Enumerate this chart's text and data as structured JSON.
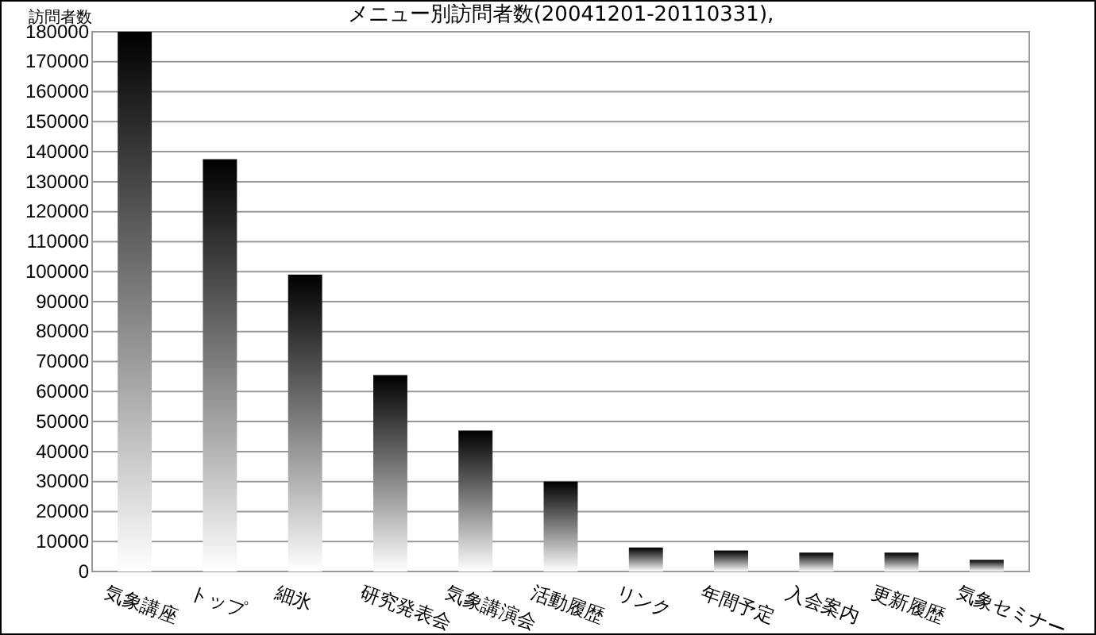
{
  "chart_data": {
    "type": "bar",
    "title": "メニュー別訪問者数(20041201-20110331),",
    "ylabel": "訪問者数",
    "categories": [
      "気象講座",
      "トップ",
      "細氷",
      "研究発表会",
      "気象講演会",
      "活動履歴",
      "リンク",
      "年間予定",
      "入会案内",
      "更新履歴",
      "気象セミナー"
    ],
    "values": [
      180000,
      137500,
      99000,
      65500,
      47000,
      30000,
      8000,
      7000,
      6300,
      6300,
      3900
    ],
    "color": "#000000",
    "ylim": [
      0,
      180000
    ],
    "yticks": [
      0,
      10000,
      20000,
      30000,
      40000,
      50000,
      60000,
      70000,
      80000,
      90000,
      100000,
      110000,
      120000,
      130000,
      140000,
      150000,
      160000,
      170000,
      180000
    ],
    "grid": "y"
  }
}
